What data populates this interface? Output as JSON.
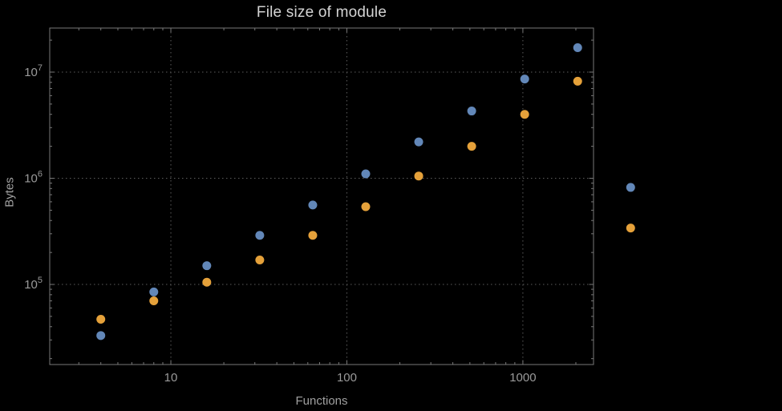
{
  "page": {
    "background": "#000000"
  },
  "style": {
    "title_color": "#d4d4d4",
    "axis_label_color": "#a0a0a0",
    "tick_label_color": "#9a9a9a",
    "frame_color": "#787878",
    "grid_color": "#5d5d5d"
  },
  "chart_data": {
    "type": "scatter",
    "title": "File size of module",
    "xlabel": "Functions",
    "ylabel": "Bytes",
    "x_scale": "log",
    "y_scale": "log",
    "grid": "dotted at major decades, both axes",
    "legend": "none",
    "xlim": [
      2.05,
      2520
    ],
    "ylim": [
      17600,
      26000000
    ],
    "x_ticks": [
      {
        "value": 10,
        "label": "10"
      },
      {
        "value": 100,
        "label": "100"
      },
      {
        "value": 1000,
        "label": "1000"
      }
    ],
    "y_ticks": [
      {
        "value": 100000,
        "base": "10",
        "exp": "5"
      },
      {
        "value": 1000000,
        "base": "10",
        "exp": "6"
      },
      {
        "value": 10000000,
        "base": "10",
        "exp": "7"
      }
    ],
    "series": [
      {
        "name": "series-1-blue",
        "color": "#6287b8",
        "x": [
          4,
          8,
          16,
          32,
          64,
          128,
          256,
          512,
          1024,
          2048,
          4096
        ],
        "y": [
          33000,
          85000,
          150000,
          290000,
          560000,
          1100000,
          2200000,
          4300000,
          8600000,
          17000000,
          820000
        ]
      },
      {
        "name": "series-2-orange",
        "color": "#e5a13a",
        "x": [
          4,
          8,
          16,
          32,
          64,
          128,
          256,
          512,
          1024,
          2048,
          4096
        ],
        "y": [
          47000,
          70000,
          105000,
          170000,
          290000,
          540000,
          1050000,
          2000000,
          4000000,
          8200000,
          340000
        ]
      }
    ]
  }
}
